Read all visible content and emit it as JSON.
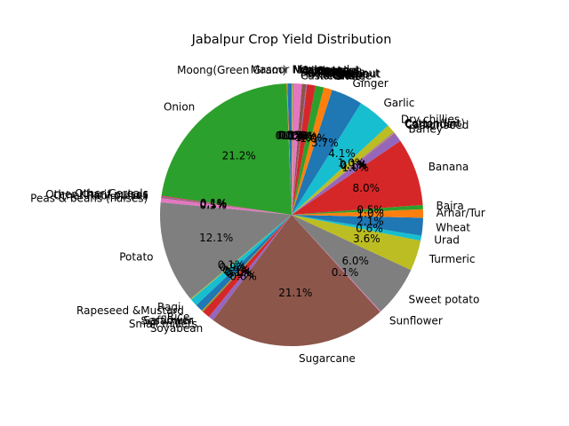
{
  "chart_data": {
    "type": "pie",
    "title": "Jabalpur Crop Yield Distribution",
    "start_angle_deg": 90,
    "direction": "counterclockwise",
    "autopct_format": "%.1f%%",
    "colors": [
      "#1f77b4",
      "#ff7f0e",
      "#2ca02c",
      "#d62728",
      "#9467bd",
      "#8c564b",
      "#e377c2",
      "#7f7f7f",
      "#bcbd22",
      "#17becf"
    ],
    "slices": [
      {
        "label": "Masoor",
        "value": 0.5
      },
      {
        "label": "Moong(Green Gram)",
        "value": 0.1
      },
      {
        "label": "Onion",
        "value": 21.2
      },
      {
        "label": "Other Cereals",
        "value": 0.1
      },
      {
        "label": "Other Kharif pulses",
        "value": 0.1
      },
      {
        "label": "Other Rabi pulses",
        "value": 0.1
      },
      {
        "label": "Peas & beans (Pulses)",
        "value": 0.5
      },
      {
        "label": "Potato",
        "value": 12.1
      },
      {
        "label": "Ragi",
        "value": 0.1
      },
      {
        "label": "Rapeseed &Mustard",
        "value": 0.9
      },
      {
        "label": "Rice",
        "value": 0.9
      },
      {
        "label": "Safflower",
        "value": 0.1
      },
      {
        "label": "Sesamum",
        "value": 0.1
      },
      {
        "label": "Small millets",
        "value": 0.9
      },
      {
        "label": "Soyabean",
        "value": 0.6
      },
      {
        "label": "Sugarcane",
        "value": 21.1
      },
      {
        "label": "Sunflower",
        "value": 0.1
      },
      {
        "label": "Sweet potato",
        "value": 6.0
      },
      {
        "label": "Turmeric",
        "value": 3.6
      },
      {
        "label": "Urad",
        "value": 0.6
      },
      {
        "label": "Wheat",
        "value": 2.1
      },
      {
        "label": "Arhar/Tur",
        "value": 1.0
      },
      {
        "label": "Bajra",
        "value": 0.5
      },
      {
        "label": "Banana",
        "value": 8.0
      },
      {
        "label": "Barley",
        "value": 1.0
      },
      {
        "label": "Castor seed",
        "value": 0.1
      },
      {
        "label": "Coriander",
        "value": 0.1
      },
      {
        "label": "Cotton(lint)",
        "value": 0.1
      },
      {
        "label": "Dry chillies",
        "value": 1.0
      },
      {
        "label": "Garlic",
        "value": 4.1
      },
      {
        "label": "Ginger",
        "value": 3.7
      },
      {
        "label": "Gram",
        "value": 1.0
      },
      {
        "label": "Groundnut",
        "value": 1.0
      },
      {
        "label": "Jowar",
        "value": 1.0
      },
      {
        "label": "Jute",
        "value": 0.1
      },
      {
        "label": "Linseed",
        "value": 0.5
      },
      {
        "label": "Maize",
        "value": 1.0
      },
      {
        "label": "Mesta",
        "value": 0.1
      },
      {
        "label": "Niger seed",
        "value": 0.1
      }
    ],
    "extra_labels": [
      "Cardamom",
      "Tobacco",
      "Arecanut",
      "Cashewnut",
      "Coconut",
      "Kapas",
      "Horse-gram",
      "Korra",
      "Urad",
      "Sannhamp",
      "Pineapple",
      "Orange"
    ]
  }
}
